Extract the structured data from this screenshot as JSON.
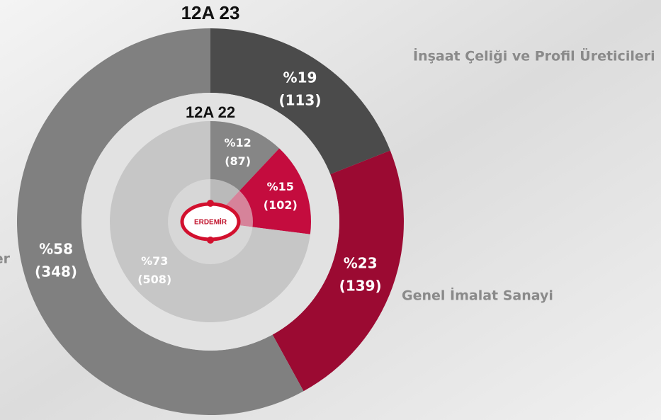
{
  "chart_data": [
    {
      "type": "donut",
      "title": "12A 23",
      "categories": [
        "İnşaat Çeliği ve Profil Üreticileri",
        "Genel İmalat Sanayi",
        "er"
      ],
      "values": [
        19,
        23,
        58
      ],
      "value_labels": [
        "%19",
        "%23",
        "%58"
      ],
      "counts": [
        113,
        139,
        348
      ],
      "count_labels": [
        "(113)",
        "(139)",
        "(348)"
      ],
      "colors": [
        "#4b4b4b",
        "#9b0a32",
        "#808080"
      ]
    },
    {
      "type": "pie",
      "title": "12A 22",
      "values": [
        12,
        15,
        73
      ],
      "value_labels": [
        "%12",
        "%15",
        "%73"
      ],
      "counts": [
        87,
        102,
        508
      ],
      "count_labels": [
        "(87)",
        "(102)",
        "(508)"
      ],
      "colors": [
        "#868686",
        "#c40c3e",
        "#c6c6c6"
      ]
    }
  ],
  "logo": "ERDEMİR"
}
